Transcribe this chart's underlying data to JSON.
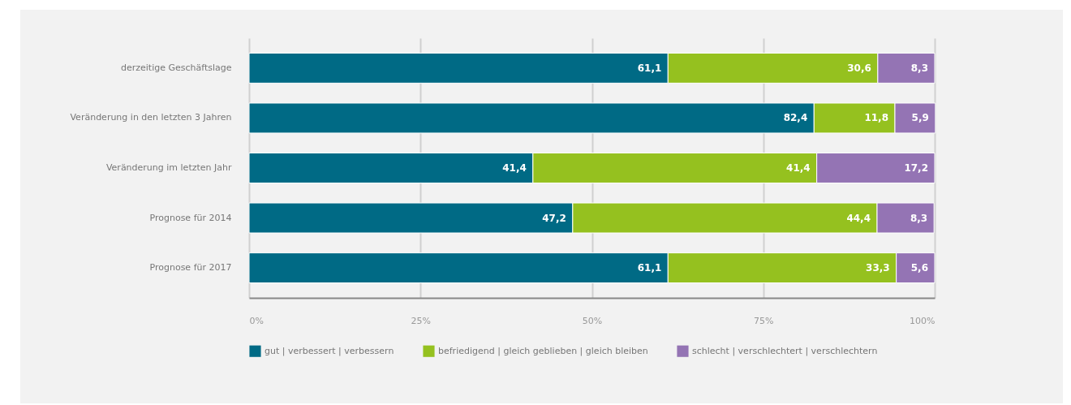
{
  "chart_data": {
    "type": "bar",
    "orientation": "horizontal",
    "stacked": true,
    "categories": [
      "derzeitige Geschäftslage",
      "Veränderung in den letzten 3 Jahren",
      "Veränderung im letzten Jahr",
      "Prognose für 2014",
      "Prognose für 2017"
    ],
    "series": [
      {
        "name": "gut | verbessert | verbessern",
        "color": "#006a85",
        "values": [
          61.1,
          82.4,
          41.4,
          47.2,
          61.1
        ],
        "value_labels": [
          "61,1",
          "82,4",
          "41,4",
          "47,2",
          "61,1"
        ]
      },
      {
        "name": "befriedigend | gleich geblieben | gleich bleiben",
        "color": "#95c11f",
        "values": [
          30.6,
          11.8,
          41.4,
          44.4,
          33.3
        ],
        "value_labels": [
          "30,6",
          "11,8",
          "41,4",
          "44,4",
          "33,3"
        ]
      },
      {
        "name": "schlecht | verschlechtert | verschlechtern",
        "color": "#9474b4",
        "values": [
          8.3,
          5.9,
          17.2,
          8.3,
          5.6
        ],
        "value_labels": [
          "8,3",
          "5,9",
          "17,2",
          "8,3",
          "5,6"
        ]
      }
    ],
    "xlim": [
      0,
      100
    ],
    "xticks": [
      {
        "value": 0,
        "label": "0%"
      },
      {
        "value": 25,
        "label": "25%"
      },
      {
        "value": 50,
        "label": "50%"
      },
      {
        "value": 75,
        "label": "75%"
      },
      {
        "value": 100,
        "label": "100%"
      }
    ],
    "grid": "x",
    "legend": "bottom"
  }
}
